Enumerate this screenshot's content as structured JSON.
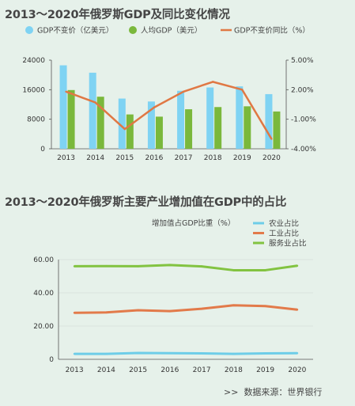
{
  "charts": {
    "gdp": {
      "title": "2013～2020年俄罗斯GDP及同比变化情况"
    },
    "industry": {
      "title": "2013～2020年俄罗斯主要产业增加值在GDP中的占比",
      "source_prefix": ">>",
      "source": "数据来源：世界银行"
    }
  },
  "chart_data": [
    {
      "type": "bar",
      "title": "2013～2020年俄罗斯GDP及同比变化情况",
      "categories": [
        "2013",
        "2014",
        "2015",
        "2016",
        "2017",
        "2018",
        "2019",
        "2020"
      ],
      "legend": [
        "GDP不变价（亿美元）",
        "人均GDP（美元）",
        "GDP不变价同比（%）"
      ],
      "legend_position": "top",
      "grid": false,
      "y_left": {
        "ticks": [
          "0",
          "8000",
          "16000",
          "24000"
        ],
        "range": [
          0,
          24000
        ]
      },
      "y_right": {
        "ticks": [
          "-4.00%",
          "-1.00%",
          "2.00%",
          "5.00%"
        ],
        "range": [
          -4,
          5
        ]
      },
      "series": [
        {
          "name": "GDP不变价（亿美元）",
          "type": "bar",
          "axis": "left",
          "color": "#7fd3f3",
          "values": [
            22600,
            20600,
            13600,
            12800,
            15700,
            16600,
            16900,
            14800
          ]
        },
        {
          "name": "人均GDP（美元）",
          "type": "bar",
          "axis": "left",
          "color": "#7ab83c",
          "values": [
            15900,
            14100,
            9300,
            8700,
            10700,
            11300,
            11500,
            10100
          ]
        },
        {
          "name": "GDP不变价同比（%）",
          "type": "line",
          "axis": "right",
          "color": "#e07844",
          "values": [
            1.8,
            0.7,
            -2.0,
            0.2,
            1.8,
            2.8,
            2.0,
            -3.0
          ]
        }
      ]
    },
    {
      "type": "line",
      "title": "2013～2020年俄罗斯主要产业增加值在GDP中的占比",
      "categories": [
        "2013",
        "2014",
        "2015",
        "2016",
        "2017",
        "2018",
        "2019",
        "2020"
      ],
      "legend_title": "增加值占GDP比重（%）",
      "legend": [
        "农业占比",
        "工业占比",
        "服务业占比"
      ],
      "legend_position": "top-right",
      "grid": true,
      "y": {
        "ticks": [
          "0",
          "20.00",
          "40.00",
          "60.00"
        ],
        "range": [
          0,
          60
        ]
      },
      "series": [
        {
          "name": "农业占比",
          "color": "#6ecde8",
          "values": [
            3.3,
            3.3,
            3.8,
            3.7,
            3.6,
            3.3,
            3.6,
            3.7
          ]
        },
        {
          "name": "工业占比",
          "color": "#e27a4a",
          "values": [
            28.0,
            28.2,
            29.5,
            29.0,
            30.4,
            32.5,
            32.0,
            29.9
          ]
        },
        {
          "name": "服务业占比",
          "color": "#82c341",
          "values": [
            56.0,
            56.1,
            56.0,
            56.7,
            55.9,
            53.6,
            53.6,
            56.3
          ]
        }
      ]
    }
  ]
}
